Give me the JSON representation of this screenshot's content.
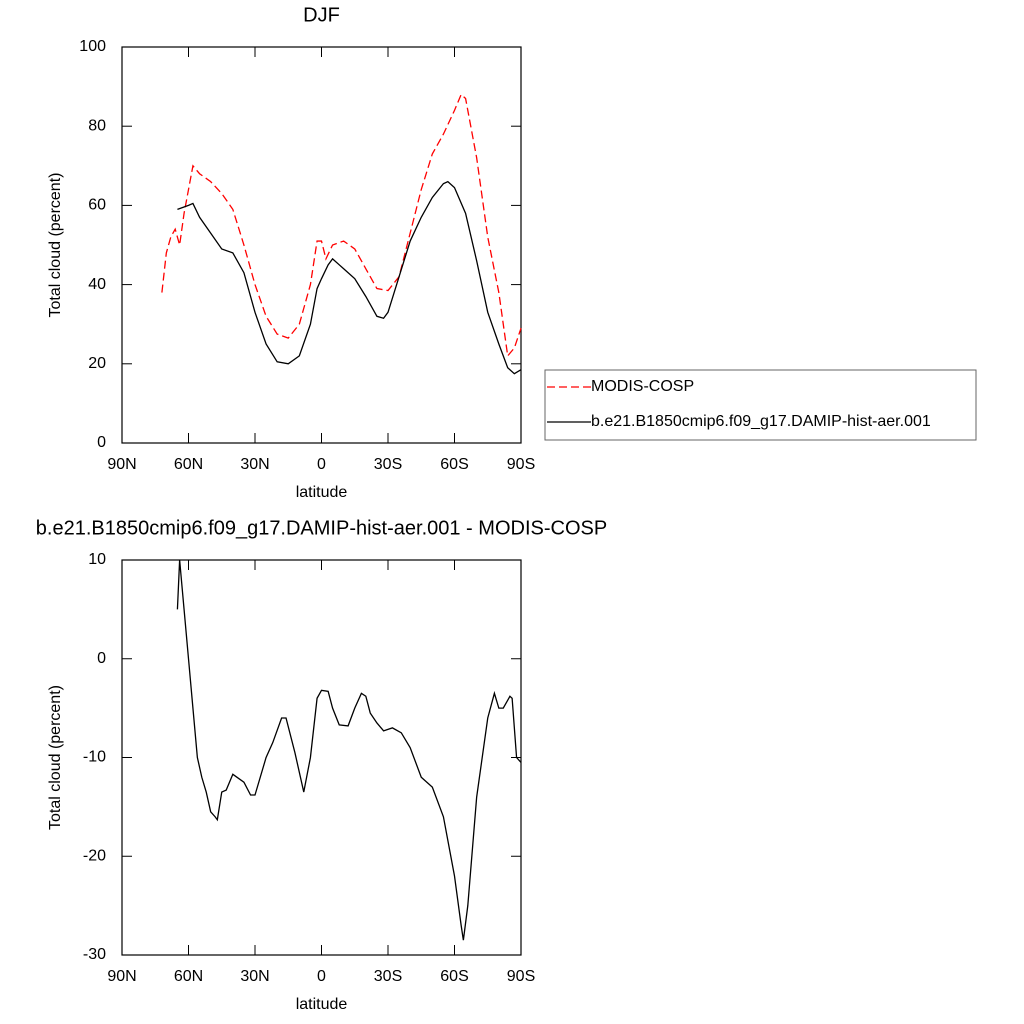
{
  "chart_data": [
    {
      "type": "line",
      "title": "DJF",
      "x_label": "latitude",
      "y_label": "Total cloud (percent)",
      "xlim": [
        90,
        -90
      ],
      "xticks": [
        {
          "value": 90,
          "label": "90N"
        },
        {
          "value": 60,
          "label": "60N"
        },
        {
          "value": 30,
          "label": "30N"
        },
        0,
        {
          "value": -30,
          "label": "30S"
        },
        {
          "value": -60,
          "label": "60S"
        },
        {
          "value": -90,
          "label": "90S"
        }
      ],
      "ylim": [
        0,
        100
      ],
      "yticks": [
        0,
        20,
        40,
        60,
        80,
        100
      ],
      "legend": "right",
      "series": [
        {
          "name": "MODIS-COSP",
          "color": "#ff0000",
          "line_style": "dashed",
          "x": [
            72,
            70,
            68,
            66,
            64,
            62,
            58,
            55,
            50,
            45,
            40,
            35,
            30,
            25,
            20,
            15,
            10,
            5,
            2,
            0,
            -2,
            -5,
            -10,
            -15,
            -20,
            -25,
            -30,
            -35,
            -40,
            -45,
            -50,
            -55,
            -60,
            -63,
            -65,
            -70,
            -75,
            -80,
            -84,
            -87,
            -90
          ],
          "values": [
            38,
            48,
            52,
            54,
            50,
            58,
            70,
            68,
            66,
            63,
            59,
            50,
            40,
            32,
            27.5,
            26.5,
            30,
            40,
            51,
            51,
            46.5,
            50,
            51,
            49,
            44,
            39,
            38.5,
            42,
            53,
            64,
            73,
            78,
            84,
            88,
            87,
            72,
            52,
            38,
            22,
            24,
            29
          ]
        },
        {
          "name": "b.e21.B1850cmip6.f09_g17.DAMIP-hist-aer.001",
          "color": "#000000",
          "line_style": "solid",
          "x": [
            65,
            60,
            58,
            55,
            50,
            45,
            40,
            35,
            30,
            25,
            20,
            15,
            10,
            5,
            2,
            0,
            -3,
            -5,
            -8,
            -10,
            -15,
            -20,
            -25,
            -28,
            -30,
            -35,
            -40,
            -45,
            -50,
            -55,
            -57,
            -60,
            -65,
            -70,
            -75,
            -80,
            -84,
            -87,
            -90
          ],
          "values": [
            59,
            60,
            60.5,
            57,
            53,
            49,
            48,
            43,
            33,
            25,
            20.5,
            20,
            22,
            30,
            39,
            41.5,
            45,
            46.5,
            45,
            44,
            41.5,
            37,
            32,
            31.5,
            33,
            42,
            51,
            57,
            62,
            65.5,
            66,
            64.5,
            58,
            46,
            33,
            25,
            19,
            17.5,
            18.5
          ]
        }
      ]
    },
    {
      "type": "line",
      "title": "b.e21.B1850cmip6.f09_g17.DAMIP-hist-aer.001 - MODIS-COSP",
      "x_label": "latitude",
      "y_label": "Total cloud (percent)",
      "xlim": [
        90,
        -90
      ],
      "xticks": [
        {
          "value": 90,
          "label": "90N"
        },
        {
          "value": 60,
          "label": "60N"
        },
        {
          "value": 30,
          "label": "30N"
        },
        0,
        {
          "value": -30,
          "label": "30S"
        },
        {
          "value": -60,
          "label": "60S"
        },
        {
          "value": -90,
          "label": "90S"
        }
      ],
      "ylim": [
        -30,
        10
      ],
      "yticks": [
        -30,
        -20,
        -10,
        0,
        10
      ],
      "series": [
        {
          "color": "#000000",
          "line_style": "solid",
          "x": [
            65,
            64,
            62,
            60,
            58,
            56,
            54,
            52,
            50,
            48,
            47,
            45,
            43,
            40,
            35,
            32,
            30,
            25,
            22,
            18,
            16,
            12,
            8,
            5,
            2,
            0,
            -3,
            -5,
            -8,
            -12,
            -15,
            -18,
            -20,
            -22,
            -25,
            -28,
            -32,
            -36,
            -40,
            -45,
            -50,
            -55,
            -60,
            -63,
            -64,
            -66,
            -70,
            -75,
            -78,
            -80,
            -82,
            -85,
            -86,
            -88,
            -90
          ],
          "values": [
            5,
            10,
            5,
            0,
            -5,
            -10,
            -12,
            -13.5,
            -15.5,
            -16,
            -16.3,
            -13.5,
            -13.3,
            -11.7,
            -12.5,
            -13.8,
            -13.8,
            -10,
            -8.5,
            -6,
            -6,
            -9.5,
            -13.5,
            -10,
            -4,
            -3.2,
            -3.3,
            -5,
            -6.7,
            -6.8,
            -5,
            -3.5,
            -3.8,
            -5.5,
            -6.5,
            -7.3,
            -7,
            -7.5,
            -9,
            -12,
            -13,
            -16,
            -22,
            -27,
            -28.5,
            -25,
            -14,
            -6,
            -3.5,
            -5,
            -5,
            -3.8,
            -4,
            -10,
            -10.5
          ]
        }
      ]
    }
  ]
}
